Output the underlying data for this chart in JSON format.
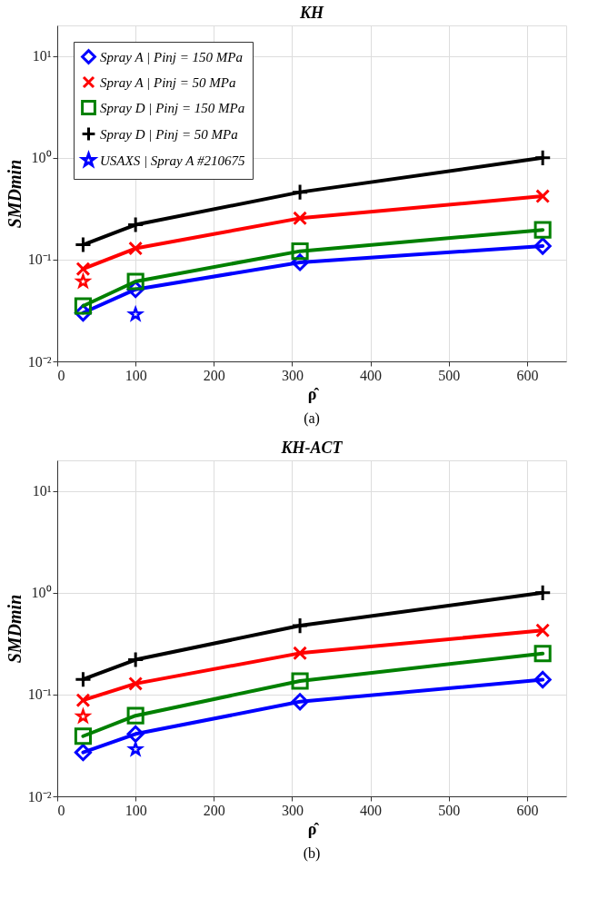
{
  "chart_data": [
    {
      "type": "line",
      "title": "KH",
      "xlabel": "ρ̂",
      "ylabel": "SMDmin",
      "annotations": [
        "(a)"
      ],
      "x": [
        33,
        100,
        310,
        620
      ],
      "xlim": [
        0,
        650
      ],
      "xticks": [
        0,
        100,
        200,
        300,
        400,
        500,
        600
      ],
      "log": "y",
      "ylim": [
        0.01,
        20
      ],
      "yticks": [
        {
          "value": 0.01,
          "label": "10⁻²"
        },
        {
          "value": 0.1,
          "label": "10⁻¹"
        },
        {
          "value": 1,
          "label": "10⁰"
        },
        {
          "value": 10,
          "label": "10¹"
        }
      ],
      "grid": true,
      "legend": "top left",
      "series": [
        {
          "name": "Spray A | Pinj = 150 MPa",
          "color": "#0000ff",
          "marker": "diamond",
          "values": [
            0.03,
            0.051,
            0.094,
            0.136
          ]
        },
        {
          "name": "Spray A | Pinj = 50 MPa",
          "color": "#ff0000",
          "marker": "x",
          "values": [
            0.081,
            0.129,
            0.255,
            0.42
          ]
        },
        {
          "name": "Spray D | Pinj = 150 MPa",
          "color": "#008000",
          "marker": "square",
          "values": [
            0.035,
            0.061,
            0.121,
            0.196
          ]
        },
        {
          "name": "Spray D | Pinj = 50 MPa",
          "color": "#000000",
          "marker": "cross",
          "values": [
            0.14,
            0.22,
            0.46,
            1.0
          ]
        },
        {
          "name": "USAXS | Spray A #210675",
          "type": "scatter",
          "color": "#0000ff",
          "marker": "star",
          "values": [
            null,
            0.029,
            null,
            null
          ]
        },
        {
          "type": "scatter",
          "color": "#ff0000",
          "marker": "star",
          "values": [
            0.061,
            null,
            null,
            null
          ]
        }
      ]
    },
    {
      "type": "line",
      "title": "KH-ACT",
      "xlabel": "ρ̂",
      "ylabel": "SMDmin",
      "annotations": [
        "(b)"
      ],
      "x": [
        33,
        100,
        310,
        620
      ],
      "xlim": [
        0,
        650
      ],
      "xticks": [
        0,
        100,
        200,
        300,
        400,
        500,
        600
      ],
      "log": "y",
      "ylim": [
        0.01,
        20
      ],
      "yticks": [
        {
          "value": 0.01,
          "label": "10⁻²"
        },
        {
          "value": 0.1,
          "label": "10⁻¹"
        },
        {
          "value": 1,
          "label": "10⁰"
        },
        {
          "value": 10,
          "label": "10¹"
        }
      ],
      "grid": true,
      "legend": false,
      "series": [
        {
          "color": "#0000ff",
          "marker": "diamond",
          "values": [
            0.027,
            0.041,
            0.085,
            0.14
          ]
        },
        {
          "color": "#ff0000",
          "marker": "x",
          "values": [
            0.088,
            0.128,
            0.255,
            0.427
          ]
        },
        {
          "color": "#008000",
          "marker": "square",
          "values": [
            0.039,
            0.062,
            0.136,
            0.253
          ]
        },
        {
          "color": "#000000",
          "marker": "cross",
          "values": [
            0.141,
            0.22,
            0.475,
            1.0
          ]
        },
        {
          "type": "scatter",
          "color": "#0000ff",
          "marker": "star",
          "values": [
            null,
            0.029,
            null,
            null
          ]
        },
        {
          "type": "scatter",
          "color": "#ff0000",
          "marker": "star",
          "values": [
            0.061,
            null,
            null,
            null
          ]
        }
      ]
    }
  ]
}
